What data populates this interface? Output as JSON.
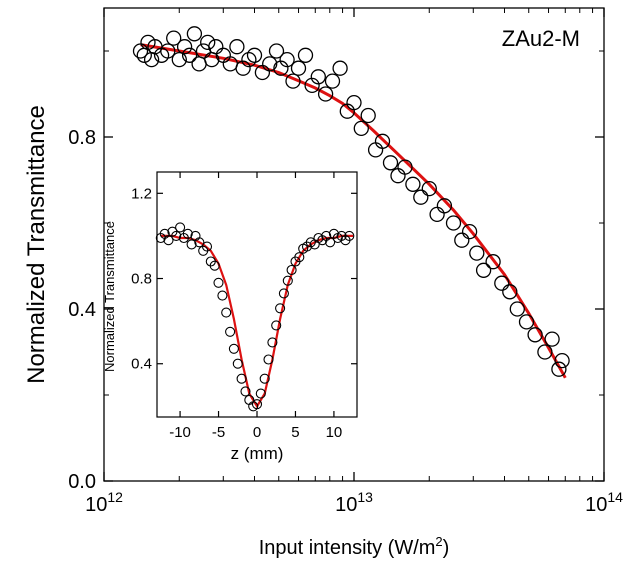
{
  "chart_data": [
    {
      "type": "scatter",
      "annotation": "ZAu2-M",
      "xlabel_prefix": "Input intensity (W/m",
      "xlabel_exp": "2",
      "xlabel_suffix": ")",
      "ylabel": "Normalized Transmittance",
      "x_scale": "log",
      "xlim": [
        1000000000000.0,
        100000000000000.0
      ],
      "ylim": [
        0.0,
        1.1
      ],
      "x_ticks": [
        {
          "value": 1000000000000.0,
          "base": "10",
          "exp": "12"
        },
        {
          "value": 10000000000000.0,
          "base": "10",
          "exp": "13"
        },
        {
          "value": 100000000000000.0,
          "base": "10",
          "exp": "14"
        }
      ],
      "y_ticks": [
        {
          "value": 0.0,
          "label": "0.0"
        },
        {
          "value": 0.4,
          "label": "0.4"
        },
        {
          "value": 0.8,
          "label": "0.8"
        }
      ],
      "series": [
        {
          "marker": "open-circle",
          "color": "#000000",
          "x": [
            1400000000000.0,
            1450000000000.0,
            1500000000000.0,
            1550000000000.0,
            1600000000000.0,
            1700000000000.0,
            1800000000000.0,
            1900000000000.0,
            2000000000000.0,
            2100000000000.0,
            2200000000000.0,
            2300000000000.0,
            2400000000000.0,
            2500000000000.0,
            2600000000000.0,
            2700000000000.0,
            2800000000000.0,
            3000000000000.0,
            3200000000000.0,
            3400000000000.0,
            3600000000000.0,
            3800000000000.0,
            4000000000000.0,
            4300000000000.0,
            4600000000000.0,
            4900000000000.0,
            5100000000000.0,
            5400000000000.0,
            5700000000000.0,
            6000000000000.0,
            6400000000000.0,
            6800000000000.0,
            7200000000000.0,
            7700000000000.0,
            8200000000000.0,
            8800000000000.0,
            9400000000000.0,
            10000000000000.0,
            10700000000000.0,
            11400000000000.0,
            12200000000000.0,
            13000000000000.0,
            14000000000000.0,
            15000000000000.0,
            16000000000000.0,
            17200000000000.0,
            18500000000000.0,
            20000000000000.0,
            21500000000000.0,
            23000000000000.0,
            25000000000000.0,
            27000000000000.0,
            29000000000000.0,
            31000000000000.0,
            33000000000000.0,
            36000000000000.0,
            39000000000000.0,
            42000000000000.0,
            45000000000000.0,
            49000000000000.0,
            53000000000000.0,
            58000000000000.0,
            62000000000000.0,
            66000000000000.0,
            68000000000000.0
          ],
          "y": [
            1.0,
            0.99,
            1.02,
            0.98,
            1.01,
            0.99,
            1.0,
            1.03,
            0.98,
            1.01,
            0.99,
            1.04,
            0.97,
            1.0,
            1.02,
            0.98,
            1.01,
            0.99,
            0.97,
            1.01,
            0.96,
            0.98,
            0.99,
            0.95,
            0.97,
            1.0,
            0.96,
            0.98,
            0.93,
            0.96,
            0.99,
            0.92,
            0.94,
            0.9,
            0.93,
            0.96,
            0.86,
            0.88,
            0.82,
            0.85,
            0.77,
            0.79,
            0.74,
            0.71,
            0.73,
            0.69,
            0.66,
            0.68,
            0.62,
            0.64,
            0.6,
            0.56,
            0.58,
            0.53,
            0.49,
            0.51,
            0.46,
            0.44,
            0.4,
            0.37,
            0.34,
            0.3,
            0.33,
            0.26,
            0.28
          ]
        },
        {
          "type": "line",
          "color": "#dd1111",
          "x": [
            1400000000000.0,
            2000000000000.0,
            3000000000000.0,
            4000000000000.0,
            5000000000000.0,
            6000000000000.0,
            7000000000000.0,
            8000000000000.0,
            9000000000000.0,
            10000000000000.0,
            12000000000000.0,
            15000000000000.0,
            20000000000000.0,
            25000000000000.0,
            30000000000000.0,
            40000000000000.0,
            50000000000000.0,
            60000000000000.0,
            70000000000000.0
          ],
          "y": [
            1.015,
            1.0,
            0.983,
            0.967,
            0.95,
            0.931,
            0.914,
            0.896,
            0.878,
            0.856,
            0.814,
            0.76,
            0.69,
            0.63,
            0.575,
            0.48,
            0.39,
            0.31,
            0.24
          ]
        }
      ]
    },
    {
      "type": "scatter",
      "xlabel": "z (mm)",
      "ylabel": "Normalized Transmittance",
      "xlim": [
        -13,
        13
      ],
      "ylim": [
        0.15,
        1.3
      ],
      "x_ticks": [
        {
          "value": -10,
          "label": "-10"
        },
        {
          "value": -5,
          "label": "-5"
        },
        {
          "value": 0,
          "label": "0"
        },
        {
          "value": 5,
          "label": "5"
        },
        {
          "value": 10,
          "label": "10"
        }
      ],
      "y_ticks": [
        {
          "value": 0.4,
          "label": "0.4"
        },
        {
          "value": 0.8,
          "label": "0.8"
        },
        {
          "value": 1.2,
          "label": "1.2"
        }
      ],
      "series": [
        {
          "marker": "open-circle",
          "color": "#000000",
          "x": [
            -12.5,
            -12,
            -11.5,
            -11,
            -10.5,
            -10,
            -9.5,
            -9,
            -8.5,
            -8,
            -7.5,
            -7,
            -6.5,
            -6,
            -5.5,
            -5,
            -4.5,
            -4,
            -3.5,
            -3,
            -2.5,
            -2,
            -1.5,
            -1,
            -0.5,
            0,
            0.5,
            1,
            1.5,
            2,
            2.5,
            3,
            3.5,
            4,
            4.5,
            5,
            5.5,
            6,
            6.5,
            7,
            7.5,
            8,
            8.5,
            9,
            9.5,
            10,
            10.5,
            11,
            11.5,
            12
          ],
          "y": [
            0.99,
            1.01,
            0.98,
            1.02,
            1.0,
            1.04,
            0.99,
            1.01,
            0.96,
            1.0,
            0.97,
            0.93,
            0.95,
            0.88,
            0.86,
            0.78,
            0.72,
            0.64,
            0.55,
            0.47,
            0.4,
            0.33,
            0.27,
            0.23,
            0.2,
            0.21,
            0.26,
            0.33,
            0.42,
            0.5,
            0.58,
            0.66,
            0.73,
            0.79,
            0.84,
            0.88,
            0.9,
            0.94,
            0.95,
            0.97,
            0.96,
            0.99,
            0.98,
            1.0,
            0.97,
            1.01,
            0.99,
            1.0,
            0.98,
            1.0
          ]
        },
        {
          "type": "line",
          "color": "#dd1111",
          "x": [
            -12.5,
            -11,
            -10,
            -9,
            -8,
            -7,
            -6,
            -5,
            -4,
            -3,
            -2,
            -1,
            0,
            1,
            2,
            3,
            4,
            5,
            6,
            7,
            8,
            9,
            10,
            11,
            12.5
          ],
          "y": [
            1.0,
            1.0,
            0.99,
            0.99,
            0.98,
            0.96,
            0.93,
            0.87,
            0.77,
            0.61,
            0.42,
            0.26,
            0.2,
            0.26,
            0.42,
            0.61,
            0.77,
            0.87,
            0.93,
            0.96,
            0.98,
            0.99,
            0.99,
            1.0,
            1.0
          ]
        }
      ]
    }
  ]
}
